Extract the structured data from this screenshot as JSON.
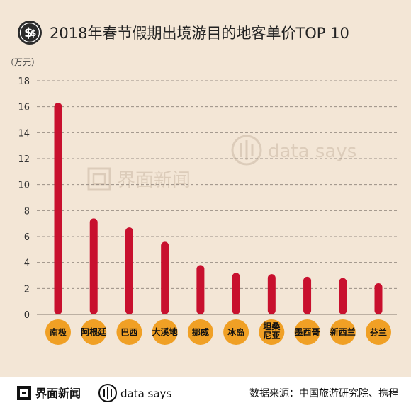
{
  "chart_data": {
    "type": "bar",
    "title": "2018年春节假期出境游目的地客单价TOP 10",
    "ylabel": "（万元）",
    "ylim": [
      0,
      18
    ],
    "yticks": [
      0,
      2,
      4,
      6,
      8,
      10,
      12,
      14,
      16,
      18
    ],
    "grid": true,
    "categories": [
      "南极",
      "阿根廷",
      "巴西",
      "大溪地",
      "挪威",
      "冰岛",
      "坦桑尼亚",
      "墨西哥",
      "新西兰",
      "芬兰"
    ],
    "category_labels": [
      [
        "南极"
      ],
      [
        "阿根廷"
      ],
      [
        "巴西"
      ],
      [
        "大溪地"
      ],
      [
        "挪威"
      ],
      [
        "冰岛"
      ],
      [
        "坦桑",
        "尼亚"
      ],
      [
        "墨西哥"
      ],
      [
        "新西兰"
      ],
      [
        "芬兰"
      ]
    ],
    "values": [
      16.3,
      7.4,
      6.7,
      5.6,
      3.8,
      3.2,
      3.1,
      2.9,
      2.8,
      2.4
    ]
  },
  "colors": {
    "bar": "#c8102e",
    "label_circle": "#f0a025",
    "background": "#f3e6d6",
    "grid": "#9a8f85"
  },
  "icons": {
    "title_icon": "dollar-coin-icon",
    "brand_logo": "jiemian-logo-icon",
    "datasays_logo": "datasays-logo-icon"
  },
  "watermark": {
    "brand": "界面新闻",
    "datasays": "data says"
  },
  "footer": {
    "brand": "界面新闻",
    "datasays": "data says",
    "source": "数据来源：中国旅游研究院、携程"
  }
}
